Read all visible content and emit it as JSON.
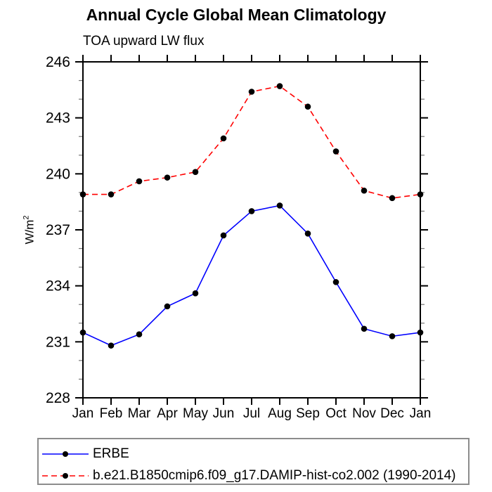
{
  "header": {
    "title": "Annual Cycle Global Mean Climatology",
    "subtitle": "TOA upward LW flux"
  },
  "chart_data": {
    "type": "line",
    "title": "Annual Cycle Global Mean Climatology",
    "subtitle": "TOA upward LW flux",
    "ylabel": "W/m²",
    "ylabel_base": "W/m",
    "ylabel_sup": "2",
    "xlabel": "",
    "categories": [
      "Jan",
      "Feb",
      "Mar",
      "Apr",
      "May",
      "Jun",
      "Jul",
      "Aug",
      "Sep",
      "Oct",
      "Nov",
      "Dec",
      "Jan"
    ],
    "series": [
      {
        "name": "ERBE",
        "color": "#0000ff",
        "line_style": "solid",
        "marker": "filled-circle",
        "marker_color": "#000000",
        "values": [
          231.5,
          230.8,
          231.4,
          232.9,
          233.6,
          236.7,
          238.0,
          238.3,
          236.8,
          234.2,
          231.7,
          231.3,
          231.5
        ]
      },
      {
        "name": "b.e21.B1850cmip6.f09_g17.DAMIP-hist-co2.002 (1990-2014)",
        "color": "#ff0000",
        "line_style": "dashed",
        "marker": "filled-circle",
        "marker_color": "#000000",
        "values": [
          238.9,
          238.9,
          239.6,
          239.8,
          240.1,
          241.9,
          244.4,
          244.7,
          243.6,
          241.2,
          239.1,
          238.7,
          238.9
        ]
      }
    ],
    "ylim": [
      228,
      246
    ],
    "yticks": [
      228,
      231,
      234,
      237,
      240,
      243,
      246
    ],
    "ytick_minor_step": 1,
    "grid": false,
    "axes_box": true,
    "tick_direction": "out",
    "legend_position": "bottom-left-box"
  },
  "colors": {
    "axis": "#000000",
    "minor_tick": "#777777",
    "marker": "#000000",
    "legend_border": "#8c8c8c",
    "erbe_line": "#0000ff",
    "model_line": "#ff0000"
  }
}
